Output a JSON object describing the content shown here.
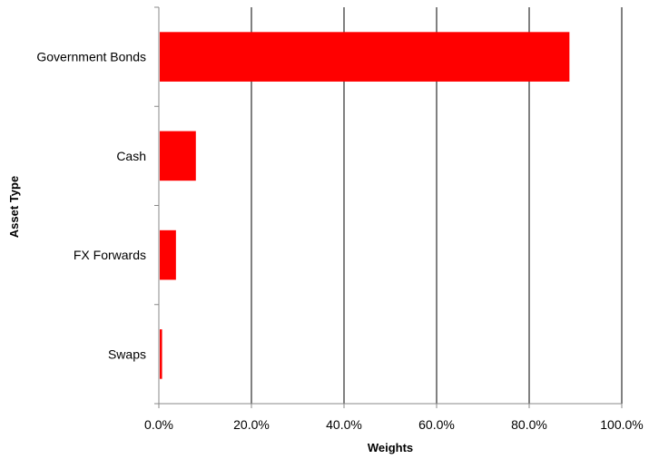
{
  "chart_data": {
    "type": "bar",
    "orientation": "horizontal",
    "categories": [
      "Government Bonds",
      "Cash",
      "FX Forwards",
      "Swaps"
    ],
    "values": [
      88.5,
      7.8,
      3.5,
      0.5
    ],
    "x_ticks": [
      "0.0%",
      "20.0%",
      "40.0%",
      "60.0%",
      "80.0%",
      "100.0%"
    ],
    "xlim": [
      0,
      100
    ],
    "xlabel": "Weights",
    "ylabel": "Asset Type",
    "bar_color": "#ff0000",
    "grid": "vertical gridlines"
  }
}
